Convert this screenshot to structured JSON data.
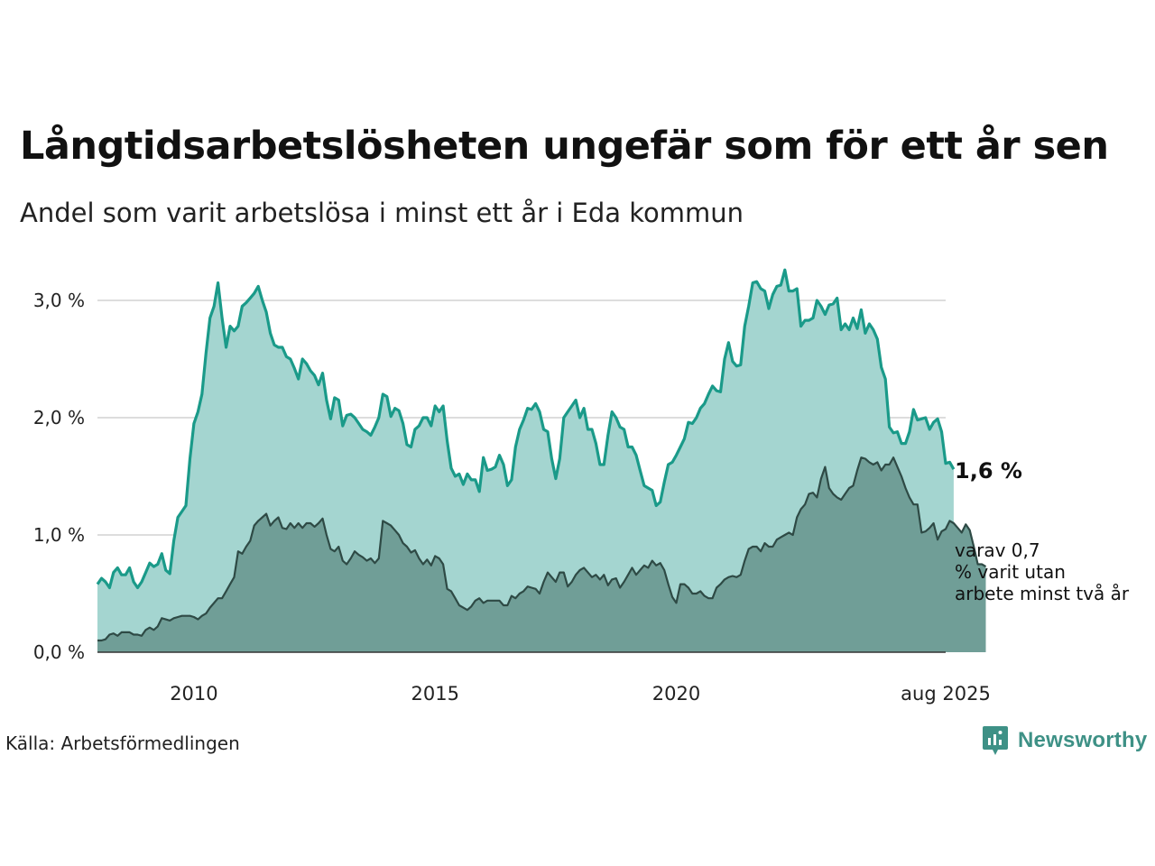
{
  "title": "Långtidsarbetslösheten ungefär som för ett år sen",
  "subtitle": "Andel som varit arbetslösa i minst ett år i Eda kommun",
  "source": "Källa: Arbetsförmedlingen",
  "brand": {
    "name": "Newsworthy",
    "icon": "newsworthy-logo-icon",
    "color": "#3e9186"
  },
  "colors": {
    "total_line": "#1a9a89",
    "total_fill": "#a4d5d0",
    "long_line": "#2e4a45",
    "long_fill": "#709e97",
    "grid": "#dddddd",
    "axis": "#333333"
  },
  "chart_data": {
    "type": "area",
    "title": "Långtidsarbetslösheten ungefär som för ett år sen",
    "subtitle": "Andel som varit arbetslösa i minst ett år i Eda kommun",
    "x_start": "2008-01",
    "x_end": "2025-08",
    "frequency": "monthly",
    "ylim": [
      0,
      3.0
    ],
    "yticks": [
      0,
      1.0,
      2.0,
      3.0
    ],
    "ytick_labels": [
      "0,0 %",
      "1,0 %",
      "2,0 %",
      "3,0 %"
    ],
    "xticks": [
      "2010-01",
      "2015-01",
      "2020-01",
      "2025-08"
    ],
    "xtick_labels": [
      "2010",
      "2015",
      "2020",
      "aug 2025"
    ],
    "grid": true,
    "series": [
      {
        "name": "",
        "end_label": "1,6 %",
        "values": [
          0.58,
          0.63,
          0.6,
          0.55,
          0.68,
          0.72,
          0.66,
          0.66,
          0.72,
          0.6,
          0.55,
          0.6,
          0.68,
          0.76,
          0.73,
          0.75,
          0.84,
          0.7,
          0.67,
          0.95,
          1.15,
          1.2,
          1.25,
          1.65,
          1.95,
          2.05,
          2.2,
          2.55,
          2.85,
          2.95,
          3.15,
          2.85,
          2.6,
          2.78,
          2.74,
          2.78,
          2.95,
          2.98,
          3.02,
          3.06,
          3.12,
          3.0,
          2.9,
          2.72,
          2.62,
          2.6,
          2.6,
          2.52,
          2.5,
          2.42,
          2.33,
          2.5,
          2.46,
          2.4,
          2.36,
          2.28,
          2.38,
          2.15,
          1.99,
          2.17,
          2.15,
          1.93,
          2.02,
          2.03,
          2.0,
          1.95,
          1.9,
          1.88,
          1.85,
          1.92,
          2.0,
          2.2,
          2.18,
          2.01,
          2.08,
          2.06,
          1.95,
          1.77,
          1.75,
          1.9,
          1.93,
          2.0,
          2.0,
          1.93,
          2.1,
          2.05,
          2.1,
          1.8,
          1.57,
          1.5,
          1.52,
          1.43,
          1.52,
          1.47,
          1.47,
          1.37,
          1.66,
          1.55,
          1.56,
          1.58,
          1.68,
          1.6,
          1.42,
          1.47,
          1.75,
          1.9,
          1.98,
          2.08,
          2.07,
          2.12,
          2.05,
          1.9,
          1.88,
          1.65,
          1.48,
          1.65,
          2.0,
          2.05,
          2.1,
          2.15,
          2.0,
          2.08,
          1.9,
          1.9,
          1.78,
          1.6,
          1.6,
          1.85,
          2.05,
          2.0,
          1.92,
          1.9,
          1.75,
          1.75,
          1.68,
          1.55,
          1.42,
          1.4,
          1.38,
          1.25,
          1.28,
          1.45,
          1.6,
          1.62,
          1.68,
          1.75,
          1.82,
          1.96,
          1.95,
          2.0,
          2.08,
          2.12,
          2.2,
          2.27,
          2.23,
          2.22,
          2.5,
          2.64,
          2.48,
          2.44,
          2.45,
          2.78,
          2.95,
          3.15,
          3.16,
          3.1,
          3.08,
          2.93,
          3.05,
          3.12,
          3.13,
          3.26,
          3.08,
          3.08,
          3.1,
          2.78,
          2.83,
          2.83,
          2.85,
          3.0,
          2.95,
          2.88,
          2.96,
          2.97,
          3.02,
          2.75,
          2.8,
          2.75,
          2.85,
          2.76,
          2.92,
          2.72,
          2.8,
          2.75,
          2.67,
          2.43,
          2.33,
          1.92,
          1.87,
          1.88,
          1.78,
          1.78,
          1.88,
          2.07,
          1.98,
          1.99,
          2.0,
          1.9,
          1.96,
          1.99,
          1.88,
          1.61,
          1.62,
          1.56
        ]
      },
      {
        "name": "",
        "end_label": "varav 0,7 % varit utan arbete minst två år",
        "values": [
          0.1,
          0.1,
          0.11,
          0.15,
          0.16,
          0.14,
          0.17,
          0.17,
          0.17,
          0.15,
          0.15,
          0.14,
          0.19,
          0.21,
          0.19,
          0.22,
          0.29,
          0.28,
          0.27,
          0.29,
          0.3,
          0.31,
          0.31,
          0.31,
          0.3,
          0.28,
          0.31,
          0.33,
          0.38,
          0.42,
          0.46,
          0.46,
          0.52,
          0.58,
          0.64,
          0.86,
          0.84,
          0.9,
          0.95,
          1.08,
          1.12,
          1.15,
          1.18,
          1.08,
          1.12,
          1.15,
          1.06,
          1.05,
          1.1,
          1.06,
          1.1,
          1.06,
          1.1,
          1.1,
          1.07,
          1.1,
          1.14,
          1.0,
          0.88,
          0.86,
          0.9,
          0.78,
          0.75,
          0.8,
          0.86,
          0.83,
          0.81,
          0.78,
          0.8,
          0.76,
          0.8,
          1.12,
          1.1,
          1.08,
          1.04,
          1.0,
          0.93,
          0.9,
          0.85,
          0.87,
          0.8,
          0.75,
          0.79,
          0.74,
          0.82,
          0.8,
          0.75,
          0.54,
          0.52,
          0.46,
          0.4,
          0.38,
          0.36,
          0.39,
          0.44,
          0.46,
          0.42,
          0.44,
          0.44,
          0.44,
          0.44,
          0.4,
          0.4,
          0.48,
          0.46,
          0.5,
          0.52,
          0.56,
          0.55,
          0.54,
          0.5,
          0.6,
          0.68,
          0.64,
          0.6,
          0.68,
          0.68,
          0.56,
          0.6,
          0.66,
          0.7,
          0.72,
          0.68,
          0.64,
          0.66,
          0.62,
          0.66,
          0.57,
          0.62,
          0.63,
          0.55,
          0.6,
          0.66,
          0.72,
          0.66,
          0.7,
          0.74,
          0.72,
          0.78,
          0.74,
          0.76,
          0.7,
          0.58,
          0.47,
          0.42,
          0.58,
          0.58,
          0.55,
          0.5,
          0.5,
          0.52,
          0.48,
          0.46,
          0.46,
          0.55,
          0.58,
          0.62,
          0.64,
          0.65,
          0.64,
          0.66,
          0.78,
          0.88,
          0.9,
          0.9,
          0.86,
          0.93,
          0.9,
          0.9,
          0.96,
          0.98,
          1.0,
          1.02,
          1.0,
          1.15,
          1.22,
          1.26,
          1.35,
          1.36,
          1.32,
          1.48,
          1.58,
          1.4,
          1.35,
          1.32,
          1.3,
          1.35,
          1.4,
          1.42,
          1.55,
          1.66,
          1.65,
          1.62,
          1.6,
          1.62,
          1.55,
          1.6,
          1.6,
          1.66,
          1.58,
          1.5,
          1.4,
          1.32,
          1.26,
          1.26,
          1.02,
          1.03,
          1.06,
          1.1,
          0.96,
          1.03,
          1.05,
          1.12,
          1.1,
          1.06,
          1.02,
          1.09,
          1.04,
          0.9,
          0.75,
          0.75,
          0.73
        ]
      }
    ]
  }
}
